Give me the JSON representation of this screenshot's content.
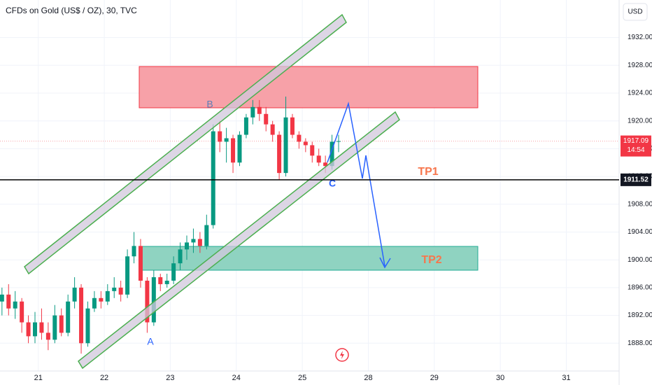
{
  "chart_data": {
    "type": "candlestick",
    "title": "CFDs on Gold (US$ / OZ), 30, TVC",
    "currency": "USD",
    "up_color": "#089981",
    "down_color": "#f23645",
    "grid": true,
    "xlim": [
      -0.58,
      8.8
    ],
    "ylim": [
      1884,
      1937.4
    ],
    "xticks": [
      {
        "value": 0,
        "label": "21"
      },
      {
        "value": 1,
        "label": "22"
      },
      {
        "value": 2,
        "label": "23"
      },
      {
        "value": 3,
        "label": "24"
      },
      {
        "value": 4,
        "label": "25"
      },
      {
        "value": 5,
        "label": "28"
      },
      {
        "value": 6,
        "label": "29"
      },
      {
        "value": 7,
        "label": "30"
      },
      {
        "value": 8,
        "label": "31"
      }
    ],
    "yticks": [
      {
        "value": 1888,
        "label": "1888.00"
      },
      {
        "value": 1892,
        "label": "1892.00"
      },
      {
        "value": 1896,
        "label": "1896.00"
      },
      {
        "value": 1900,
        "label": "1900.00"
      },
      {
        "value": 1904,
        "label": "1904.00"
      },
      {
        "value": 1908,
        "label": "1908.00"
      },
      {
        "value": 1912,
        "label": "1912.00"
      },
      {
        "value": 1916,
        "label": "1916.00"
      },
      {
        "value": 1920,
        "label": "1920.00"
      },
      {
        "value": 1924,
        "label": "1924.00"
      },
      {
        "value": 1928,
        "label": "1928.00"
      },
      {
        "value": 1932,
        "label": "1932.00"
      }
    ],
    "candles": {
      "x": [
        -0.55,
        -0.45,
        -0.35,
        -0.25,
        -0.15,
        -0.05,
        0.05,
        0.15,
        0.25,
        0.35,
        0.45,
        0.55,
        0.65,
        0.75,
        0.85,
        0.95,
        1.05,
        1.15,
        1.25,
        1.35,
        1.45,
        1.55,
        1.65,
        1.75,
        1.85,
        1.95,
        2.05,
        2.15,
        2.25,
        2.35,
        2.45,
        2.55,
        2.65,
        2.75,
        2.85,
        2.95,
        3.05,
        3.15,
        3.25,
        3.35,
        3.45,
        3.55,
        3.65,
        3.75,
        3.85,
        3.95,
        4.05,
        4.15,
        4.25,
        4.35,
        4.45,
        4.55
      ],
      "open": [
        1894,
        1895,
        1893,
        1894,
        1891,
        1889,
        1891,
        1889.5,
        1888.5,
        1892,
        1889.5,
        1894,
        1896,
        1888,
        1893,
        1894.5,
        1894,
        1895.5,
        1896,
        1895,
        1900.5,
        1902,
        1897,
        1891,
        1897.5,
        1896.5,
        1897,
        1899.5,
        1901.5,
        1902.5,
        1903,
        1902,
        1905,
        1918.5,
        1917,
        1917.5,
        1914,
        1918,
        1920.5,
        1922,
        1921,
        1919.5,
        1918,
        1912.5,
        1920.5,
        1918,
        1917,
        1916.5,
        1915,
        1914,
        1913.5,
        1917
      ],
      "high": [
        1896,
        1896.5,
        1895.5,
        1894.5,
        1892,
        1892.5,
        1893,
        1891,
        1893.5,
        1893,
        1895,
        1897.5,
        1896.5,
        1894,
        1895.5,
        1895.5,
        1896.5,
        1897.5,
        1897,
        1901.5,
        1904,
        1903,
        1897.5,
        1898.5,
        1898,
        1898,
        1900.5,
        1902.5,
        1903.5,
        1904.5,
        1904,
        1906.5,
        1919.5,
        1920,
        1919,
        1918,
        1918.5,
        1921,
        1923,
        1923,
        1922,
        1920,
        1918.5,
        1923.5,
        1921,
        1918.5,
        1917.5,
        1917,
        1916,
        1915,
        1918,
        1918
      ],
      "low": [
        1892,
        1892,
        1891.5,
        1889.5,
        1888,
        1888,
        1888.5,
        1887,
        1888,
        1889,
        1889,
        1893,
        1886.5,
        1887.5,
        1892.5,
        1893,
        1893.5,
        1894.5,
        1894,
        1894.5,
        1899.5,
        1896,
        1889.5,
        1890.5,
        1895.5,
        1896,
        1896.5,
        1898.5,
        1900,
        1901,
        1901,
        1901.5,
        1904.5,
        1915.5,
        1914,
        1912.5,
        1913.5,
        1917.5,
        1919.5,
        1920,
        1918.5,
        1917,
        1911.5,
        1912,
        1917.5,
        1916,
        1915.5,
        1914,
        1913.5,
        1912.5,
        1913,
        1915.5
      ],
      "close": [
        1895,
        1893,
        1894,
        1891,
        1889,
        1891,
        1889.5,
        1888.5,
        1892,
        1889.5,
        1894,
        1896,
        1888,
        1893,
        1894.5,
        1894,
        1895.5,
        1896,
        1895,
        1900.5,
        1902,
        1897,
        1891,
        1897.5,
        1896.5,
        1897,
        1899.5,
        1901.5,
        1902.5,
        1903,
        1902,
        1905,
        1918.5,
        1917,
        1917.5,
        1914,
        1918,
        1920.5,
        1922,
        1921,
        1919.5,
        1918,
        1912.5,
        1920.5,
        1918,
        1917,
        1916.5,
        1915,
        1914,
        1913.5,
        1917,
        1917.09
      ]
    },
    "price_line": 1911.52,
    "last_price": 1917.09,
    "countdown": "14:54",
    "annotations": [
      "B",
      "A",
      "C",
      "TP1",
      "TP2"
    ]
  }
}
